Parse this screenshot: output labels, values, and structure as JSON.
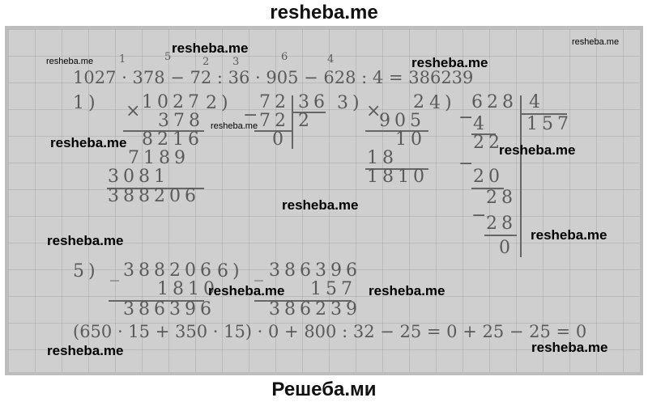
{
  "header": "resheba.me",
  "footer": "Решеба.ми",
  "watermark": "resheba.me",
  "order_marks": [
    "1",
    "5",
    "2",
    "3",
    "6",
    "4"
  ],
  "main_expression": "1027 · 378 − 72 : 36 · 905 − 628 : 4 = 386239",
  "steps": {
    "s1": {
      "label": "1)",
      "a": "1027",
      "b": "378",
      "p1": "8216",
      "p2": "7189",
      "p3": "3081",
      "result": "388206"
    },
    "s2": {
      "label": "2)",
      "dividend": "72",
      "divisor": "36",
      "sub": "72",
      "rem": "0",
      "quotient": "2"
    },
    "s3": {
      "label": "3)",
      "a": "2",
      "b": "905",
      "p1": "10",
      "p2": "18",
      "result": "1810"
    },
    "s4": {
      "label": "4)",
      "dividend": "628",
      "divisor": "4",
      "quotient": "157",
      "r1": "4",
      "r2": "22",
      "r3": "20",
      "r4": "28",
      "r5": "28",
      "rem": "0"
    },
    "s5": {
      "label": "5)",
      "a": "388206",
      "b": "1810",
      "result": "386396"
    },
    "s6": {
      "label": "6)",
      "a": "386396",
      "b": "157",
      "result": "386239"
    }
  },
  "second_expression": "(650 · 15 + 350 · 15) · 0 + 800 : 32 − 25 = 0 + 25 − 25 = 0"
}
